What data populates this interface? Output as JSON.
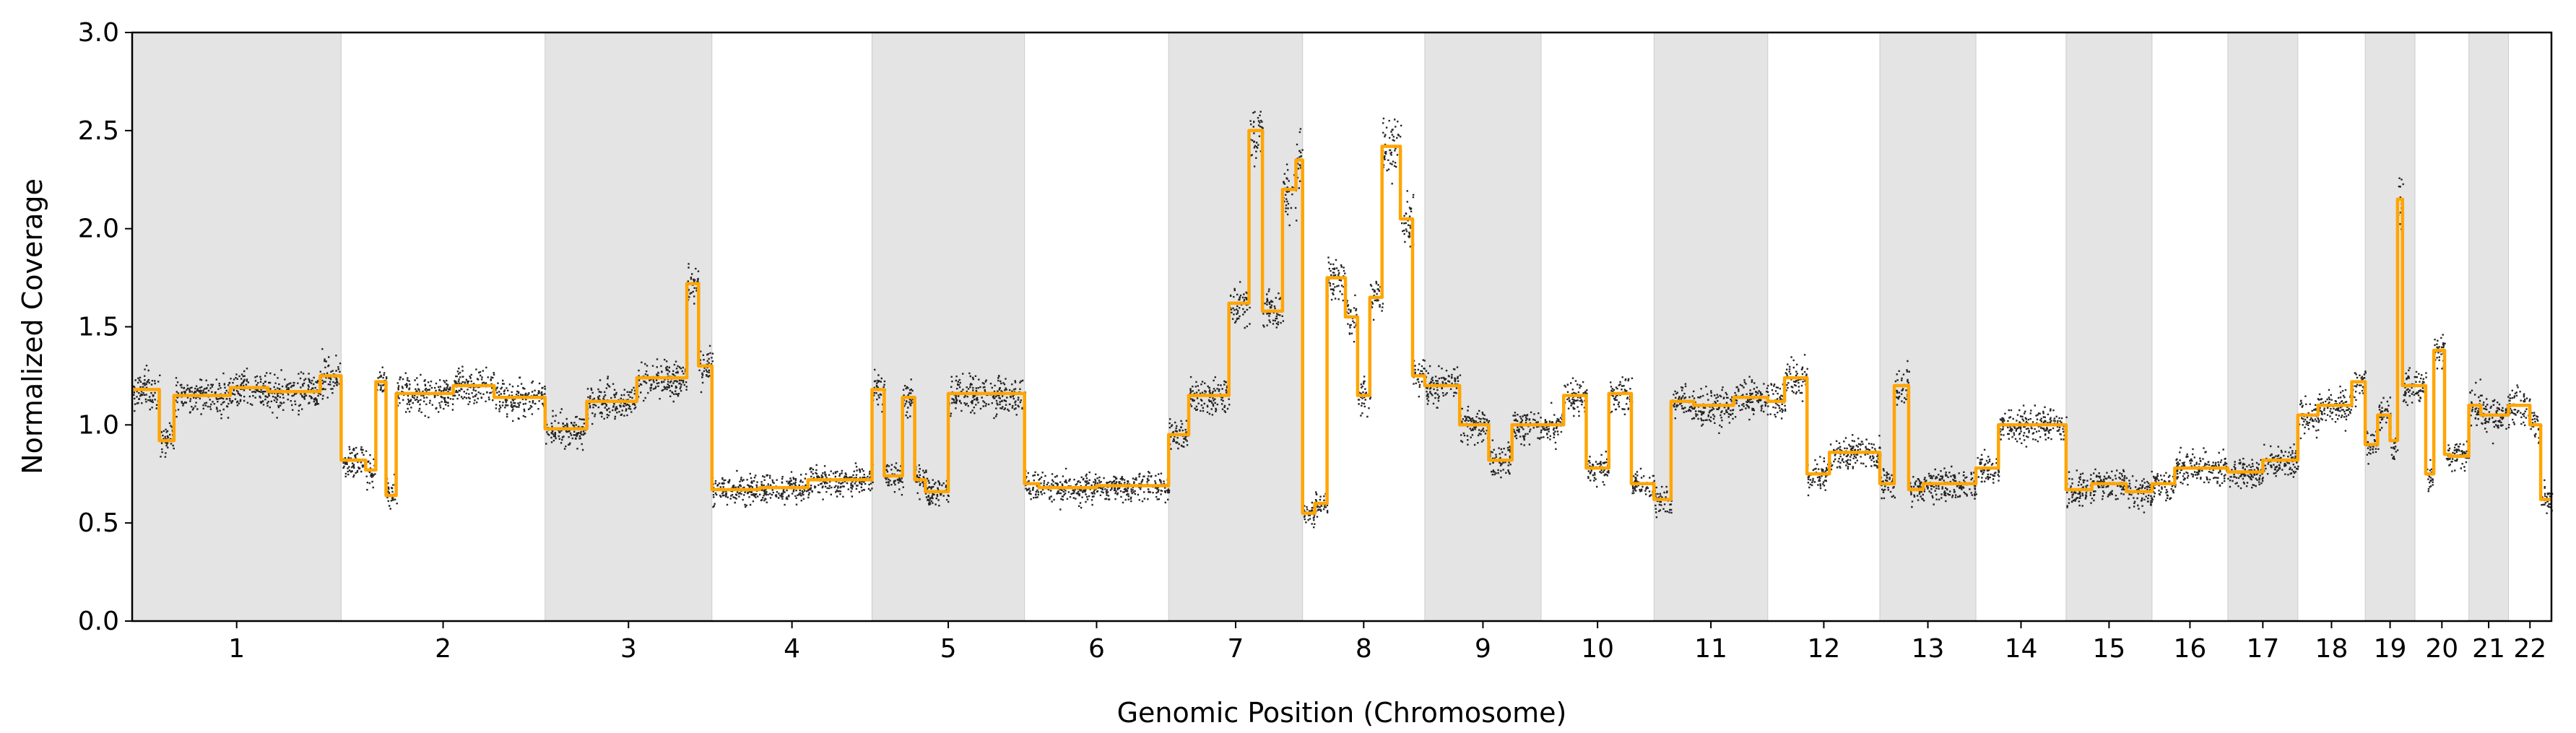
{
  "chart_data": {
    "type": "scatter",
    "xlabel": "Genomic Position (Chromosome)",
    "ylabel": "Normalized Coverage",
    "ylim": [
      0,
      3
    ],
    "yticks": [
      "0.0",
      "0.5",
      "1.0",
      "1.5",
      "2.0",
      "2.5",
      "3.0"
    ],
    "categories": [
      "1",
      "2",
      "3",
      "4",
      "5",
      "6",
      "7",
      "8",
      "9",
      "10",
      "11",
      "12",
      "13",
      "14",
      "15",
      "16",
      "17",
      "18",
      "19",
      "20",
      "21",
      "22"
    ],
    "chromosome_lengths_mb": [
      248,
      242,
      198,
      190,
      181,
      171,
      159,
      145,
      138,
      134,
      135,
      133,
      114,
      107,
      102,
      90,
      83,
      80,
      59,
      64,
      47,
      51
    ],
    "segment_means": [
      [
        [
          0,
          0.13,
          1.18
        ],
        [
          0.13,
          0.2,
          0.92
        ],
        [
          0.2,
          0.47,
          1.15
        ],
        [
          0.47,
          0.65,
          1.19
        ],
        [
          0.65,
          0.9,
          1.17
        ],
        [
          0.9,
          1,
          1.25
        ]
      ],
      [
        [
          0,
          0.12,
          0.82
        ],
        [
          0.12,
          0.17,
          0.77
        ],
        [
          0.17,
          0.22,
          1.22
        ],
        [
          0.22,
          0.27,
          0.64
        ],
        [
          0.27,
          0.55,
          1.16
        ],
        [
          0.55,
          0.75,
          1.2
        ],
        [
          0.75,
          1,
          1.14
        ]
      ],
      [
        [
          0,
          0.25,
          0.98
        ],
        [
          0.25,
          0.55,
          1.12
        ],
        [
          0.55,
          0.85,
          1.24
        ],
        [
          0.85,
          0.92,
          1.72
        ],
        [
          0.92,
          1,
          1.3
        ]
      ],
      [
        [
          0,
          0.3,
          0.67
        ],
        [
          0.3,
          0.6,
          0.68
        ],
        [
          0.6,
          1,
          0.72
        ]
      ],
      [
        [
          0,
          0.08,
          1.18
        ],
        [
          0.08,
          0.2,
          0.74
        ],
        [
          0.2,
          0.28,
          1.14
        ],
        [
          0.28,
          0.35,
          0.72
        ],
        [
          0.35,
          0.5,
          0.66
        ],
        [
          0.5,
          1,
          1.16
        ]
      ],
      [
        [
          0,
          0.1,
          0.7
        ],
        [
          0.1,
          0.5,
          0.68
        ],
        [
          0.5,
          1,
          0.69
        ]
      ],
      [
        [
          0,
          0.15,
          0.95
        ],
        [
          0.15,
          0.45,
          1.15
        ],
        [
          0.45,
          0.6,
          1.62
        ],
        [
          0.6,
          0.7,
          2.5
        ],
        [
          0.7,
          0.85,
          1.58
        ],
        [
          0.85,
          0.95,
          2.2
        ],
        [
          0.95,
          1,
          2.35
        ]
      ],
      [
        [
          0,
          0.1,
          0.55
        ],
        [
          0.1,
          0.2,
          0.6
        ],
        [
          0.2,
          0.35,
          1.75
        ],
        [
          0.35,
          0.45,
          1.55
        ],
        [
          0.45,
          0.55,
          1.15
        ],
        [
          0.55,
          0.65,
          1.65
        ],
        [
          0.65,
          0.8,
          2.42
        ],
        [
          0.8,
          0.9,
          2.05
        ],
        [
          0.9,
          1,
          1.25
        ]
      ],
      [
        [
          0,
          0.3,
          1.2
        ],
        [
          0.3,
          0.55,
          1.0
        ],
        [
          0.55,
          0.75,
          0.82
        ],
        [
          0.75,
          1,
          1.0
        ]
      ],
      [
        [
          0,
          0.2,
          1.0
        ],
        [
          0.2,
          0.4,
          1.15
        ],
        [
          0.4,
          0.6,
          0.78
        ],
        [
          0.6,
          0.8,
          1.16
        ],
        [
          0.8,
          1,
          0.7
        ]
      ],
      [
        [
          0,
          0.15,
          0.62
        ],
        [
          0.15,
          0.35,
          1.12
        ],
        [
          0.35,
          0.7,
          1.1
        ],
        [
          0.7,
          1,
          1.14
        ]
      ],
      [
        [
          0,
          0.15,
          1.12
        ],
        [
          0.15,
          0.35,
          1.24
        ],
        [
          0.35,
          0.55,
          0.75
        ],
        [
          0.55,
          0.75,
          0.86
        ],
        [
          0.75,
          1,
          0.86
        ]
      ],
      [
        [
          0,
          0.15,
          0.7
        ],
        [
          0.15,
          0.3,
          1.2
        ],
        [
          0.3,
          0.45,
          0.67
        ],
        [
          0.45,
          1,
          0.7
        ]
      ],
      [
        [
          0,
          0.25,
          0.78
        ],
        [
          0.25,
          0.35,
          1.0
        ],
        [
          0.35,
          1,
          1.0
        ]
      ],
      [
        [
          0,
          0.3,
          0.67
        ],
        [
          0.3,
          0.7,
          0.7
        ],
        [
          0.7,
          1,
          0.66
        ]
      ],
      [
        [
          0,
          0.3,
          0.7
        ],
        [
          0.3,
          1,
          0.78
        ]
      ],
      [
        [
          0,
          0.5,
          0.76
        ],
        [
          0.5,
          1,
          0.82
        ]
      ],
      [
        [
          0,
          0.3,
          1.05
        ],
        [
          0.3,
          0.6,
          1.1
        ],
        [
          0.6,
          0.8,
          1.1
        ],
        [
          0.8,
          1,
          1.22
        ]
      ],
      [
        [
          0,
          0.25,
          0.9
        ],
        [
          0.25,
          0.5,
          1.05
        ],
        [
          0.5,
          0.65,
          0.92
        ],
        [
          0.65,
          0.75,
          2.15
        ],
        [
          0.75,
          1,
          1.2
        ]
      ],
      [
        [
          0,
          0.2,
          1.2
        ],
        [
          0.2,
          0.35,
          0.75
        ],
        [
          0.35,
          0.55,
          1.38
        ],
        [
          0.55,
          0.65,
          0.85
        ],
        [
          0.65,
          1,
          0.84
        ]
      ],
      [
        [
          0,
          0.3,
          1.1
        ],
        [
          0.3,
          1,
          1.05
        ]
      ],
      [
        [
          0,
          0.5,
          1.1
        ],
        [
          0.5,
          0.75,
          1.0
        ],
        [
          0.75,
          1,
          0.62
        ]
      ]
    ],
    "series": [
      {
        "name": "",
        "color": "#000000",
        "marker": "point"
      },
      {
        "name": "",
        "color": "#FFA500",
        "marker": "line"
      }
    ],
    "alternate_band_color": "#E4E4E4",
    "grid": false,
    "legend": "none"
  }
}
